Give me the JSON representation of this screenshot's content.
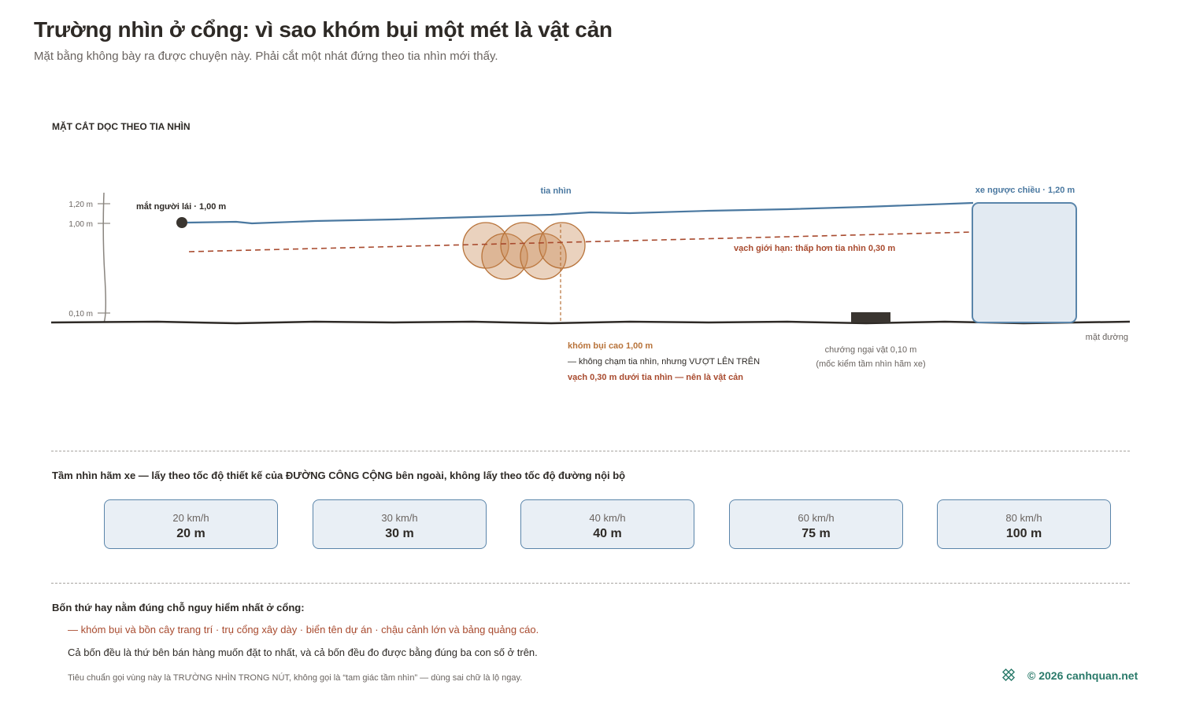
{
  "header": {
    "title": "Trường nhìn ở cổng: vì sao khóm bụi một mét là vật cản",
    "subtitle": "Mặt bằng không bày ra được chuyện này. Phải cắt một nhát đứng theo tia nhìn mới thấy."
  },
  "section": {
    "label": "MẶT CẮT DỌC THEO TIA NHÌN",
    "axis_labels": [
      "1,20 m",
      "1,00 m",
      "0,10 m"
    ],
    "eye_label": "mắt người lái · 1,00 m",
    "sight_label": "tia nhìn",
    "car_label": "xe ngược chiều · 1,20 m",
    "limit_label": "vạch giới hạn: thấp hơn tia nhìn 0,30 m",
    "bush_label": [
      "khóm bụi cao 1,00 m",
      "— không chạm tia nhìn, nhưng VƯỢT LÊN TRÊN",
      "vạch 0,30 m dưới tia nhìn — nên là vật cản"
    ],
    "obstacle_label": [
      "chướng ngại vật 0,10 m",
      "(mốc kiểm tầm nhìn hãm xe)"
    ],
    "ground_label": "mặt đường"
  },
  "stopping": {
    "heading": "Tầm nhìn hãm xe — lấy theo tốc độ thiết kế của ĐƯỜNG CÔNG CỘNG bên ngoài, không lấy theo tốc độ đường nội bộ",
    "cards": [
      {
        "speed": "20 km/h",
        "distance": "20 m"
      },
      {
        "speed": "30 km/h",
        "distance": "30 m"
      },
      {
        "speed": "40 km/h",
        "distance": "40 m"
      },
      {
        "speed": "60 km/h",
        "distance": "75 m"
      },
      {
        "speed": "80 km/h",
        "distance": "100 m"
      }
    ]
  },
  "notes": {
    "heading": "Bốn thứ hay nằm đúng chỗ nguy hiểm nhất ở cổng:",
    "items": "— khóm bụi và bồn cây trang trí · trụ cổng xây dày · biển tên dự án · chậu cảnh lớn và bảng quảng cáo.",
    "body": "Cả bốn đều là thứ bên bán hàng muốn đặt to nhất, và cả bốn đều đo được bằng đúng ba con số ở trên.",
    "footnote": "Tiêu chuẩn gọi vùng này là TRƯỜNG NHÌN TRONG NÚT, không gọi là “tam giác tầm nhìn” — dùng sai chữ là lộ ngay."
  },
  "footer": {
    "credit": "© 2026 canhquan.net"
  }
}
